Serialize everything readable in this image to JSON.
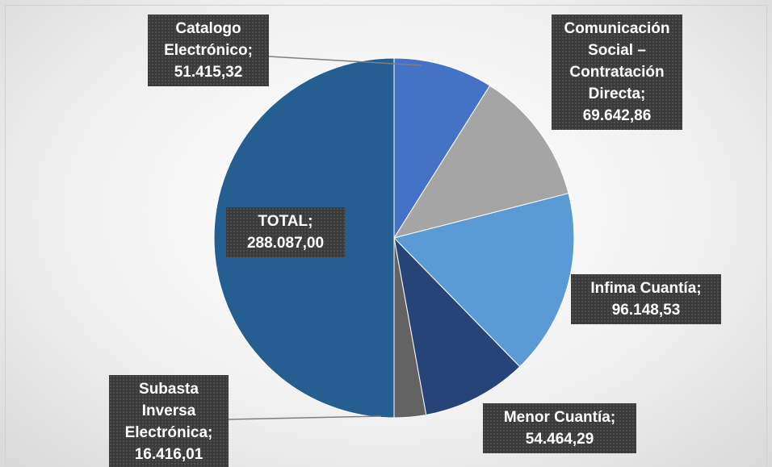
{
  "chart_data": {
    "type": "pie",
    "categories": [
      "Catalogo Electrónico",
      "Comunicación Social – Contratación Directa",
      "Infima Cuantía",
      "Menor Cuantía",
      "Subasta Inversa Electrónica",
      "TOTAL"
    ],
    "values": [
      51415.32,
      69642.86,
      96148.53,
      54464.29,
      16416.01,
      288087.0
    ],
    "value_labels": [
      "51.415,32",
      "69.642,86",
      "96.148,53",
      "54.464,29",
      "16.416,01",
      "288.087,00"
    ],
    "label_separator": ";",
    "colors": [
      "#4472c4",
      "#a5a5a5",
      "#5b9bd5",
      "#264478",
      "#636363",
      "#255e91"
    ]
  }
}
